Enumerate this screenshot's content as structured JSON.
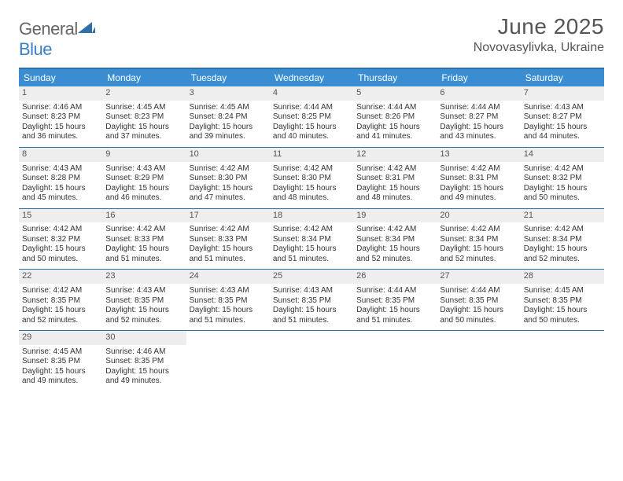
{
  "logo": {
    "text1": "General",
    "text2": "Blue"
  },
  "title": "June 2025",
  "location": "Novovasylivka, Ukraine",
  "colors": {
    "header_bar": "#3b8dd1",
    "rule": "#2f6fa7",
    "daynum_bg": "#eeeeee",
    "text": "#333333",
    "logo_gray": "#666666",
    "logo_blue": "#3b7fc4"
  },
  "dow": [
    "Sunday",
    "Monday",
    "Tuesday",
    "Wednesday",
    "Thursday",
    "Friday",
    "Saturday"
  ],
  "weeks": [
    [
      {
        "n": "1",
        "sr": "4:46 AM",
        "ss": "8:23 PM",
        "dl": "15 hours and 36 minutes."
      },
      {
        "n": "2",
        "sr": "4:45 AM",
        "ss": "8:23 PM",
        "dl": "15 hours and 37 minutes."
      },
      {
        "n": "3",
        "sr": "4:45 AM",
        "ss": "8:24 PM",
        "dl": "15 hours and 39 minutes."
      },
      {
        "n": "4",
        "sr": "4:44 AM",
        "ss": "8:25 PM",
        "dl": "15 hours and 40 minutes."
      },
      {
        "n": "5",
        "sr": "4:44 AM",
        "ss": "8:26 PM",
        "dl": "15 hours and 41 minutes."
      },
      {
        "n": "6",
        "sr": "4:44 AM",
        "ss": "8:27 PM",
        "dl": "15 hours and 43 minutes."
      },
      {
        "n": "7",
        "sr": "4:43 AM",
        "ss": "8:27 PM",
        "dl": "15 hours and 44 minutes."
      }
    ],
    [
      {
        "n": "8",
        "sr": "4:43 AM",
        "ss": "8:28 PM",
        "dl": "15 hours and 45 minutes."
      },
      {
        "n": "9",
        "sr": "4:43 AM",
        "ss": "8:29 PM",
        "dl": "15 hours and 46 minutes."
      },
      {
        "n": "10",
        "sr": "4:42 AM",
        "ss": "8:30 PM",
        "dl": "15 hours and 47 minutes."
      },
      {
        "n": "11",
        "sr": "4:42 AM",
        "ss": "8:30 PM",
        "dl": "15 hours and 48 minutes."
      },
      {
        "n": "12",
        "sr": "4:42 AM",
        "ss": "8:31 PM",
        "dl": "15 hours and 48 minutes."
      },
      {
        "n": "13",
        "sr": "4:42 AM",
        "ss": "8:31 PM",
        "dl": "15 hours and 49 minutes."
      },
      {
        "n": "14",
        "sr": "4:42 AM",
        "ss": "8:32 PM",
        "dl": "15 hours and 50 minutes."
      }
    ],
    [
      {
        "n": "15",
        "sr": "4:42 AM",
        "ss": "8:32 PM",
        "dl": "15 hours and 50 minutes."
      },
      {
        "n": "16",
        "sr": "4:42 AM",
        "ss": "8:33 PM",
        "dl": "15 hours and 51 minutes."
      },
      {
        "n": "17",
        "sr": "4:42 AM",
        "ss": "8:33 PM",
        "dl": "15 hours and 51 minutes."
      },
      {
        "n": "18",
        "sr": "4:42 AM",
        "ss": "8:34 PM",
        "dl": "15 hours and 51 minutes."
      },
      {
        "n": "19",
        "sr": "4:42 AM",
        "ss": "8:34 PM",
        "dl": "15 hours and 52 minutes."
      },
      {
        "n": "20",
        "sr": "4:42 AM",
        "ss": "8:34 PM",
        "dl": "15 hours and 52 minutes."
      },
      {
        "n": "21",
        "sr": "4:42 AM",
        "ss": "8:34 PM",
        "dl": "15 hours and 52 minutes."
      }
    ],
    [
      {
        "n": "22",
        "sr": "4:42 AM",
        "ss": "8:35 PM",
        "dl": "15 hours and 52 minutes."
      },
      {
        "n": "23",
        "sr": "4:43 AM",
        "ss": "8:35 PM",
        "dl": "15 hours and 52 minutes."
      },
      {
        "n": "24",
        "sr": "4:43 AM",
        "ss": "8:35 PM",
        "dl": "15 hours and 51 minutes."
      },
      {
        "n": "25",
        "sr": "4:43 AM",
        "ss": "8:35 PM",
        "dl": "15 hours and 51 minutes."
      },
      {
        "n": "26",
        "sr": "4:44 AM",
        "ss": "8:35 PM",
        "dl": "15 hours and 51 minutes."
      },
      {
        "n": "27",
        "sr": "4:44 AM",
        "ss": "8:35 PM",
        "dl": "15 hours and 50 minutes."
      },
      {
        "n": "28",
        "sr": "4:45 AM",
        "ss": "8:35 PM",
        "dl": "15 hours and 50 minutes."
      }
    ],
    [
      {
        "n": "29",
        "sr": "4:45 AM",
        "ss": "8:35 PM",
        "dl": "15 hours and 49 minutes."
      },
      {
        "n": "30",
        "sr": "4:46 AM",
        "ss": "8:35 PM",
        "dl": "15 hours and 49 minutes."
      },
      null,
      null,
      null,
      null,
      null
    ]
  ],
  "labels": {
    "sunrise": "Sunrise: ",
    "sunset": "Sunset: ",
    "daylight": "Daylight: "
  }
}
